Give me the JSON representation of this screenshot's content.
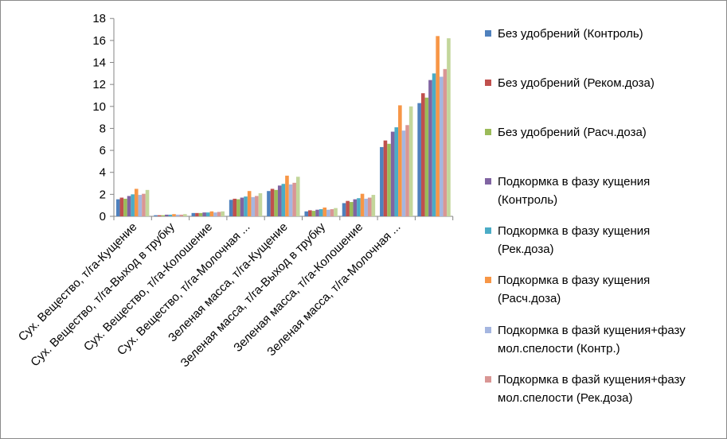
{
  "chart_data": {
    "type": "bar",
    "categories": [
      "Сух. Вещество, т/га-Кущение",
      "Сух. Вещество, т/га-Выход в трубку",
      "Сух. Вещество, т/га-Колошение",
      "Сух. Вещество, т/га-Молочная ...",
      "Зеленая масса, т/га-Кущение",
      "Зеленая масса, т/га-Выход в трубку",
      "Зеленая масса, т/га-Колошение",
      "Зеленая масса, т/га-Молочная ..."
    ],
    "ylim": [
      0,
      18
    ],
    "yticks": [
      0,
      2,
      4,
      6,
      8,
      10,
      12,
      14,
      16,
      18
    ],
    "grid": false,
    "legend_position": "right",
    "series": [
      {
        "name": "Без удобрений (Контроль)",
        "color": "#4f81bd",
        "values": [
          1.55,
          0.1,
          0.3,
          1.5,
          2.3,
          0.45,
          1.2,
          6.3
        ]
      },
      {
        "name": "Без удобрений (Реком.доза)",
        "color": "#c0504d",
        "values": [
          1.7,
          0.1,
          0.3,
          1.6,
          2.5,
          0.55,
          1.4,
          6.9
        ]
      },
      {
        "name": "Без удобрений (Расч.доза)",
        "color": "#9bbb59",
        "values": [
          1.6,
          0.1,
          0.3,
          1.55,
          2.4,
          0.5,
          1.3,
          6.6
        ]
      },
      {
        "name": "Подкормка в фазу кущения (Контроль)",
        "color": "#8064a2",
        "values": [
          1.85,
          0.15,
          0.35,
          1.7,
          2.8,
          0.6,
          1.55,
          7.7
        ]
      },
      {
        "name": "Подкормка в фазу кущения (Рек.доза)",
        "color": "#4bacc6",
        "values": [
          2.0,
          0.15,
          0.35,
          1.8,
          2.95,
          0.65,
          1.65,
          8.1
        ]
      },
      {
        "name": "Подкормка в фазу кущения (Расч.доза)",
        "color": "#f79646",
        "values": [
          2.5,
          0.2,
          0.45,
          2.3,
          3.7,
          0.8,
          2.05,
          10.1
        ]
      },
      {
        "name": "Подкормка в фазй кущения+фазу мол.спелости (Контр.)",
        "color": "#a5b6e0",
        "values": [
          1.95,
          0.15,
          0.35,
          1.75,
          2.9,
          0.6,
          1.6,
          7.8
        ]
      },
      {
        "name": "Подкормка в фазй кущения+фазу мол.спелости (Рек.доза)",
        "color": "#d99694",
        "values": [
          2.05,
          0.15,
          0.4,
          1.85,
          3.05,
          0.65,
          1.7,
          8.3
        ]
      },
      {
        "name": "",
        "color": "#c3d69b",
        "values": [
          2.4,
          0.2,
          0.45,
          2.1,
          3.6,
          0.75,
          1.95,
          10.0
        ]
      }
    ],
    "extra_group": {
      "values": [
        10.3,
        11.2,
        10.8,
        12.4,
        13.0,
        16.4,
        12.7,
        13.4,
        16.2
      ]
    }
  },
  "legend": [
    {
      "line1": "Без удобрений (Контроль)",
      "line2": "",
      "color": "#4f81bd"
    },
    {
      "line1": "Без удобрений (Реком.доза)",
      "line2": "",
      "color": "#c0504d"
    },
    {
      "line1": "Без удобрений (Расч.доза)",
      "line2": "",
      "color": "#9bbb59"
    },
    {
      "line1": "Подкормка в фазу кущения",
      "line2": "(Контроль)",
      "color": "#8064a2"
    },
    {
      "line1": "Подкормка в фазу кущения",
      "line2": "(Рек.доза)",
      "color": "#4bacc6"
    },
    {
      "line1": "Подкормка в фазу кущения",
      "line2": "(Расч.доза)",
      "color": "#f79646"
    },
    {
      "line1": "Подкормка в фазй кущения+фазу",
      "line2": "мол.спелости (Контр.)",
      "color": "#a5b6e0"
    },
    {
      "line1": "Подкормка в фазй кущения+фазу",
      "line2": "мол.спелости (Рек.доза)",
      "color": "#d99694"
    }
  ]
}
